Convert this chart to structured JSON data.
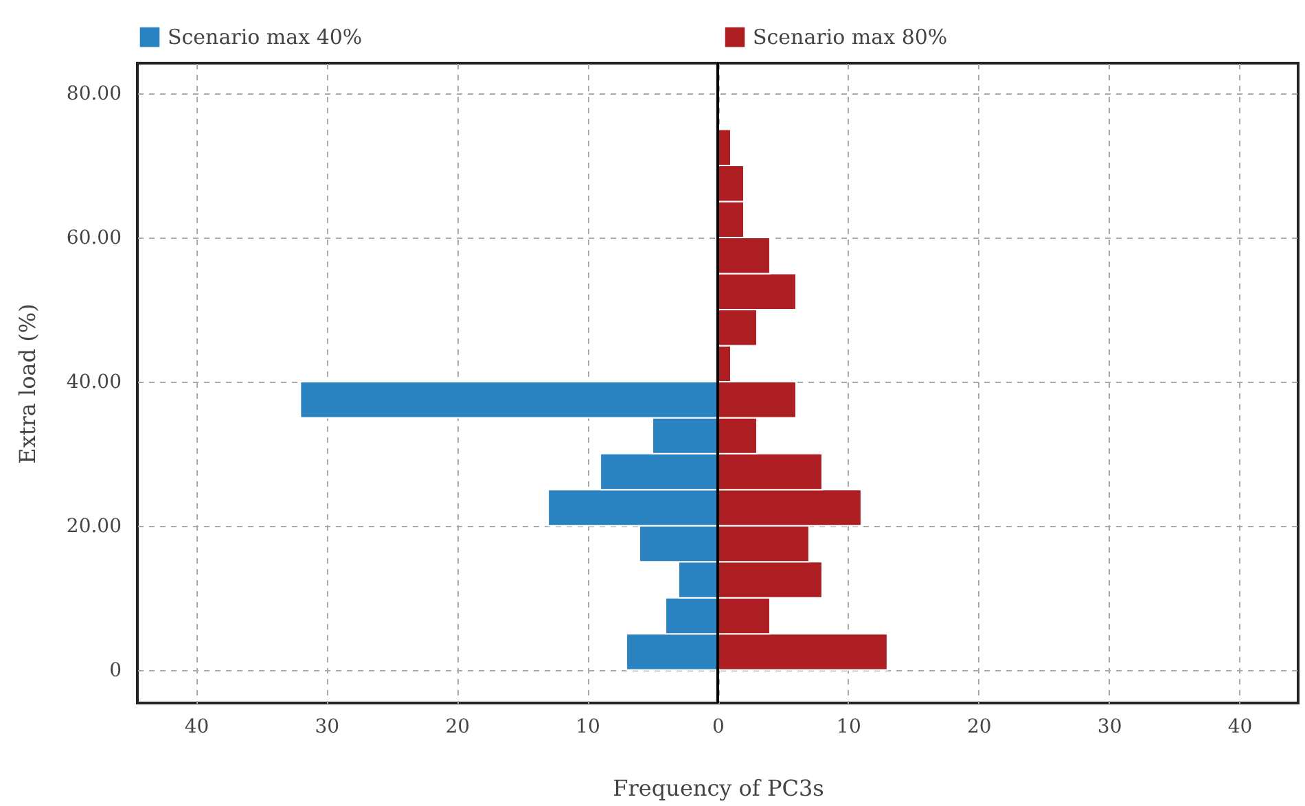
{
  "chart_data": {
    "type": "bar",
    "orientation": "horizontal",
    "xlabel": "Frequency of PC3s",
    "ylabel": "Extra load (%)",
    "x": [
      2.5,
      7.5,
      12.5,
      17.5,
      22.5,
      27.5,
      32.5,
      37.5,
      42.5,
      47.5,
      52.5,
      57.5,
      62.5,
      67.5,
      72.5
    ],
    "series": [
      {
        "name": "Scenario max 40%",
        "color": "#2a83c0",
        "values": [
          -7,
          -4,
          -3,
          -6,
          -13,
          -9,
          -5,
          -32,
          null,
          null,
          null,
          null,
          null,
          null,
          null
        ]
      },
      {
        "name": "Scenario max 80%",
        "color": "#ad1e23",
        "values": [
          13,
          4,
          8,
          7,
          11,
          8,
          3,
          6,
          1,
          3,
          6,
          4,
          2,
          2,
          1
        ]
      }
    ],
    "xlim": [
      -44.5,
      44.5
    ],
    "xticks": [
      {
        "value": -40,
        "label": "40"
      },
      {
        "value": -30,
        "label": "30"
      },
      {
        "value": -20,
        "label": "20"
      },
      {
        "value": -10,
        "label": "10"
      },
      0,
      10,
      20,
      30,
      40
    ],
    "ylim": [
      -4.6,
      84.2
    ],
    "yticks": [
      0,
      {
        "value": 20,
        "label": "20.00"
      },
      {
        "value": 40,
        "label": "40.00"
      },
      {
        "value": 60,
        "label": "60.00"
      },
      {
        "value": 80,
        "label": "80.00"
      }
    ],
    "ref_lines": [
      {
        "axis": "x",
        "value": 0,
        "color": "#000000"
      }
    ],
    "grid": true,
    "legend": "top",
    "stacked": true
  }
}
